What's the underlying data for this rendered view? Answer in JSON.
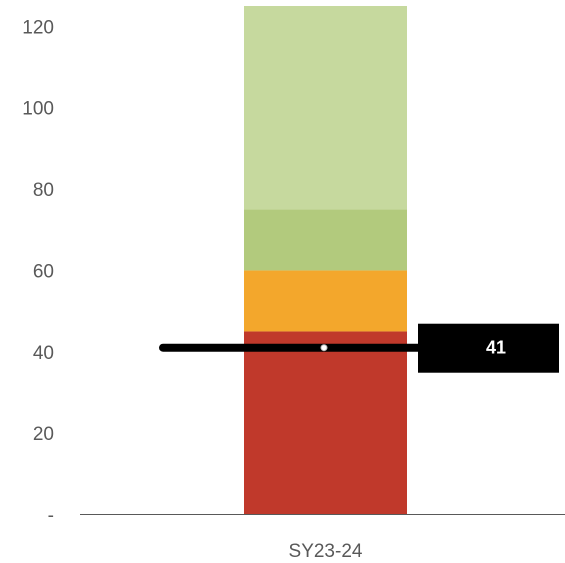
{
  "chart_data": {
    "type": "bar",
    "categories": [
      "SY23-24"
    ],
    "series": [
      {
        "values": [
          45
        ],
        "color": "#c0392b"
      },
      {
        "values": [
          15
        ],
        "color": "#f3a72c"
      },
      {
        "values": [
          15
        ],
        "color": "#b2ca7d"
      },
      {
        "values": [
          50
        ],
        "color": "#c6d99e"
      }
    ],
    "stacked": true,
    "ylim": [
      0,
      125
    ],
    "y_ticks": [
      0,
      20,
      40,
      60,
      80,
      100,
      120
    ],
    "y_tick_labels": [
      "-",
      "20",
      "40",
      "60",
      "80",
      "100",
      "120"
    ],
    "gridlines": false,
    "legend": "none",
    "title": "",
    "xlabel": "",
    "ylabel": "",
    "reference_line": {
      "value": 41,
      "label": "41",
      "color": "#000000",
      "label_color": "#ffffff"
    }
  }
}
